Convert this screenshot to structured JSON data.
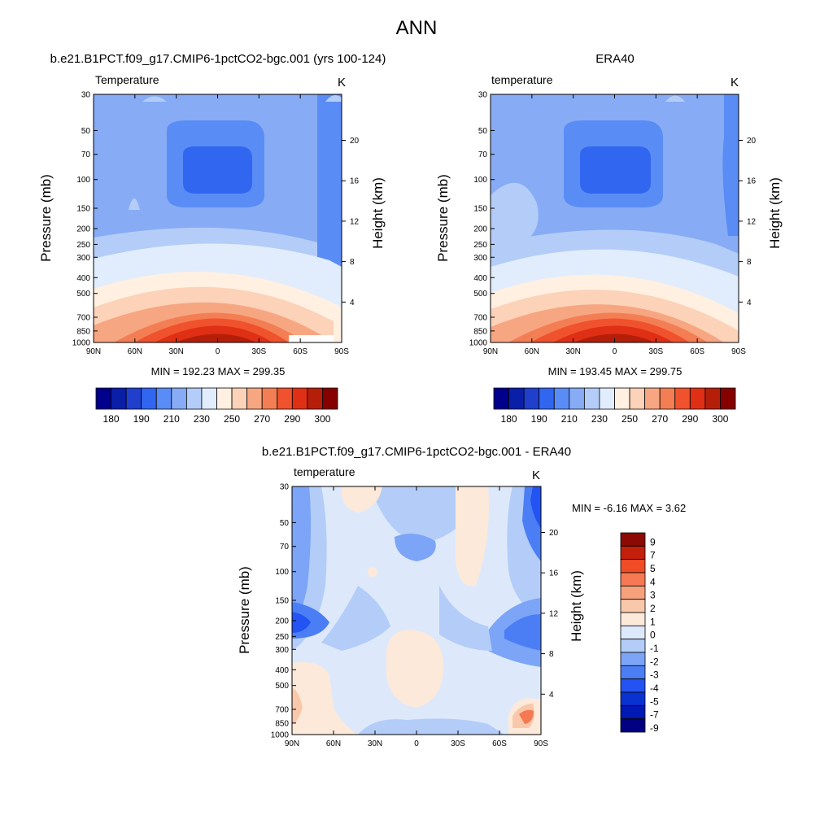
{
  "figure_title": "ANN",
  "colors": {
    "temp_scale": [
      "#00008c",
      "#0a1fa8",
      "#1f3fcc",
      "#3066f0",
      "#5a8cf5",
      "#87acf5",
      "#b4cdf8",
      "#e1edfc",
      "#fff0e1",
      "#fcd2b8",
      "#f7a682",
      "#f47e54",
      "#f0522d",
      "#df2f15",
      "#b51f0a",
      "#860000"
    ],
    "diff_scale": [
      "#000080",
      "#0018b4",
      "#0a32d2",
      "#2353f2",
      "#4b7ef5",
      "#7ca4f7",
      "#b3cdf8",
      "#dde9fb",
      "#fce9d9",
      "#f9c8ab",
      "#f7a07c",
      "#f57952",
      "#f04d27",
      "#c41f0a",
      "#8c0a05"
    ]
  },
  "chart_data": [
    {
      "type": "heatmap",
      "panel": "model",
      "title": "b.e21.B1PCT.f09_g17.CMIP6-1pctCO2-bgc.001 (yrs 100-124)",
      "left_label": "Temperature",
      "units": "K",
      "ylabel": "Pressure (mb)",
      "ylabel_right": "Height (km)",
      "x_ticks": [
        "90N",
        "60N",
        "30N",
        "0",
        "30S",
        "60S",
        "90S"
      ],
      "y_ticks": [
        "30",
        "50",
        "70",
        "100",
        "150",
        "200",
        "250",
        "300",
        "400",
        "500",
        "700",
        "850",
        "1000"
      ],
      "y2_ticks": [
        "20",
        "16",
        "12",
        "8",
        "4"
      ],
      "stats": "MIN = 192.23  MAX = 299.35",
      "ylim": [
        1000,
        30
      ],
      "xlim": [
        "90N",
        "90S"
      ]
    },
    {
      "type": "heatmap",
      "panel": "obs",
      "title": "ERA40",
      "left_label": "temperature",
      "units": "K",
      "ylabel": "Pressure (mb)",
      "ylabel_right": "Height (km)",
      "x_ticks": [
        "90N",
        "60N",
        "30N",
        "0",
        "30S",
        "60S",
        "90S"
      ],
      "y_ticks": [
        "30",
        "50",
        "70",
        "100",
        "150",
        "200",
        "250",
        "300",
        "400",
        "500",
        "700",
        "850",
        "1000"
      ],
      "y2_ticks": [
        "20",
        "16",
        "12",
        "8",
        "4"
      ],
      "stats": "MIN = 193.45  MAX = 299.75",
      "ylim": [
        1000,
        30
      ],
      "xlim": [
        "90N",
        "90S"
      ]
    },
    {
      "type": "heatmap",
      "panel": "difference",
      "title": "b.e21.B1PCT.f09_g17.CMIP6-1pctCO2-bgc.001 - ERA40",
      "left_label": "temperature",
      "units": "K",
      "ylabel": "Pressure (mb)",
      "ylabel_right": "Height (km)",
      "x_ticks": [
        "90N",
        "60N",
        "30N",
        "0",
        "30S",
        "60S",
        "90S"
      ],
      "y_ticks": [
        "30",
        "50",
        "70",
        "100",
        "150",
        "200",
        "250",
        "300",
        "400",
        "500",
        "700",
        "850",
        "1000"
      ],
      "y2_ticks": [
        "20",
        "16",
        "12",
        "8",
        "4"
      ],
      "stats": "MIN =  -6.16  MAX =   3.62",
      "ylim": [
        1000,
        30
      ],
      "xlim": [
        "90N",
        "90S"
      ]
    }
  ],
  "colorbars": {
    "temperature": {
      "labels": [
        "180",
        "190",
        "210",
        "230",
        "250",
        "270",
        "290",
        "300"
      ]
    },
    "difference": {
      "labels": [
        "9",
        "7",
        "5",
        "4",
        "3",
        "2",
        "1",
        "0",
        "-1",
        "-2",
        "-3",
        "-4",
        "-5",
        "-7",
        "-9"
      ]
    }
  }
}
